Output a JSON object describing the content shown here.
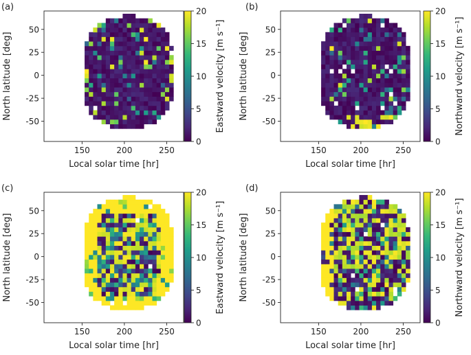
{
  "chart_data": [
    {
      "panel_label": "(a)",
      "type": "heatmap",
      "xlabel": "Local solar time [hr]",
      "ylabel": "North latitude [deg]",
      "xticks": [
        150,
        200,
        250
      ],
      "yticks": [
        -50,
        -25,
        0,
        25,
        50
      ],
      "xlim": [
        105,
        270
      ],
      "ylim": [
        -72,
        70
      ],
      "colorbar_label": "Eastward velocity [m s⁻¹]",
      "colorbar_ticks": [
        0,
        5,
        10,
        15,
        20
      ],
      "clim": [
        0,
        20
      ],
      "colormap": "viridis",
      "data_mode": "mostly low velocities (0–3 m s⁻¹) with sparse high-velocity cells scattered near the disk edges",
      "disk": {
        "lst_center": 205,
        "lst_halfwidth": 52,
        "lat_min": -58,
        "lat_max": 65
      },
      "dominant_range": [
        0,
        3
      ]
    },
    {
      "panel_label": "(b)",
      "type": "heatmap",
      "xlabel": "Local solar time [hr]",
      "ylabel": "North latitude [deg]",
      "xticks": [
        150,
        200,
        250
      ],
      "yticks": [
        -50,
        -25,
        0,
        25,
        50
      ],
      "xlim": [
        105,
        270
      ],
      "ylim": [
        -72,
        70
      ],
      "colorbar_label": "Northward velocity [m s⁻¹]",
      "colorbar_ticks": [
        0,
        5,
        10,
        15,
        20
      ],
      "clim": [
        0,
        20
      ],
      "colormap": "viridis",
      "data_mode": "mostly low velocities (0–3 m s⁻¹) with scattered high cells, high band along the southern edge",
      "disk": {
        "lst_center": 205,
        "lst_halfwidth": 52,
        "lat_min": -58,
        "lat_max": 65
      },
      "dominant_range": [
        0,
        3
      ]
    },
    {
      "panel_label": "(c)",
      "type": "heatmap",
      "xlabel": "Local solar time [hr]",
      "ylabel": "North latitude [deg]",
      "xticks": [
        150,
        200,
        250
      ],
      "yticks": [
        -50,
        -25,
        0,
        25,
        50
      ],
      "xlim": [
        105,
        270
      ],
      "ylim": [
        -72,
        70
      ],
      "colorbar_label": "Eastward velocity [m s⁻¹]",
      "colorbar_ticks": [
        0,
        5,
        10,
        15,
        20
      ],
      "clim": [
        0,
        20
      ],
      "colormap": "viridis",
      "data_mode": "saturated high velocities (≥20 m s⁻¹) at the disk edges, mixed low/mid values in the center",
      "disk": {
        "lst_center": 205,
        "lst_halfwidth": 52,
        "lat_min": -58,
        "lat_max": 65
      },
      "dominant_range": [
        18,
        20
      ]
    },
    {
      "panel_label": "(d)",
      "type": "heatmap",
      "xlabel": "Local solar time [hr]",
      "ylabel": "North latitude [deg]",
      "xticks": [
        150,
        200,
        250
      ],
      "yticks": [
        -50,
        -25,
        0,
        25,
        50
      ],
      "xlim": [
        105,
        270
      ],
      "ylim": [
        -72,
        70
      ],
      "colorbar_label": "Northward velocity [m s⁻¹]",
      "colorbar_ticks": [
        0,
        5,
        10,
        15,
        20
      ],
      "clim": [
        0,
        20
      ],
      "colormap": "viridis",
      "data_mode": "high velocities along the western limb, speckled mix of low and high values across the disk",
      "disk": {
        "lst_center": 205,
        "lst_halfwidth": 52,
        "lat_min": -58,
        "lat_max": 65
      },
      "dominant_range": [
        0,
        20
      ]
    }
  ],
  "colors": {
    "viridis": [
      "#440154",
      "#482878",
      "#3e4989",
      "#31688e",
      "#26828e",
      "#1f9e89",
      "#35b779",
      "#6ece58",
      "#b5de2b",
      "#fde725"
    ],
    "axis": "#222222",
    "missing": "#ffffff"
  }
}
